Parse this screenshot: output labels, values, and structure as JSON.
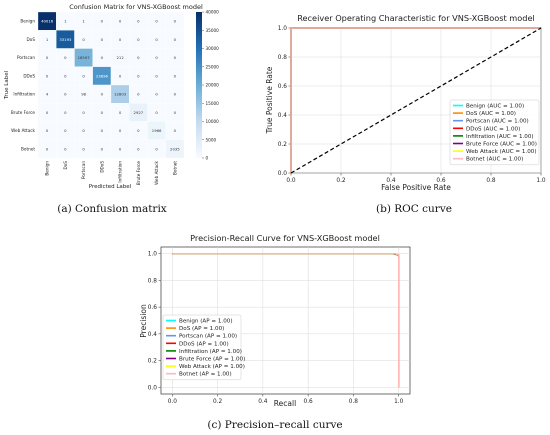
{
  "chart_data": [
    {
      "type": "heatmap",
      "title": "Confusion Matrix for VNS-XGBoost model",
      "xlabel": "Predicted Label",
      "ylabel": "True Label",
      "categories": [
        "Benign",
        "DoS",
        "Portscan",
        "DDoS",
        "Infiltration",
        "Brute Force",
        "Web Attack",
        "Botnet"
      ],
      "matrix": [
        [
          "40016",
          "1",
          "1",
          "0",
          "0",
          "0",
          "0",
          "0"
        ],
        [
          "1",
          "33193",
          "0",
          "0",
          "0",
          "0",
          "0",
          "0"
        ],
        [
          "0",
          "0",
          "18597",
          "0",
          "212",
          "0",
          "0",
          "0"
        ],
        [
          "0",
          "0",
          "0",
          "23896",
          "0",
          "0",
          "0",
          "0"
        ],
        [
          "4",
          "0",
          "98",
          "0",
          "12803",
          "0",
          "0",
          "0"
        ],
        [
          "0",
          "0",
          "0",
          "0",
          "0",
          "2927",
          "0",
          "0"
        ],
        [
          "0",
          "0",
          "0",
          "0",
          "0",
          "0",
          "1966",
          "0"
        ],
        [
          "0",
          "0",
          "0",
          "0",
          "0",
          "0",
          "0",
          "2035"
        ]
      ],
      "colorbar_ticks": [
        "0",
        "5000",
        "10000",
        "15000",
        "20000",
        "25000",
        "30000",
        "35000",
        "40000"
      ],
      "colorbar_range": [
        0,
        40000
      ],
      "caption": "(a) Confusion matrix"
    },
    {
      "type": "line",
      "title": "Receiver Operating Characteristic for VNS-XGBoost model",
      "xlabel": "False Positive Rate",
      "ylabel": "True Positive Rate",
      "xlim": [
        0,
        1
      ],
      "ylim": [
        0,
        1
      ],
      "xticks": [
        "0.0",
        "0.2",
        "0.4",
        "0.6",
        "0.8",
        "1.0"
      ],
      "yticks": [
        "0.0",
        "0.2",
        "0.4",
        "0.6",
        "0.8",
        "1.0"
      ],
      "grid": true,
      "legend_position": "lower-right",
      "series": [
        {
          "name": "Benign (AUC = 1.00)",
          "color": "#00ffff",
          "x": [
            0,
            0,
            1
          ],
          "y": [
            0,
            1,
            1
          ]
        },
        {
          "name": "DoS (AUC = 1.00)",
          "color": "#ff8c00",
          "x": [
            0,
            0,
            1
          ],
          "y": [
            0,
            1,
            1
          ]
        },
        {
          "name": "Portscan (AUC = 1.00)",
          "color": "#6495ed",
          "x": [
            0,
            0,
            1
          ],
          "y": [
            0,
            1,
            1
          ]
        },
        {
          "name": "DDoS (AUC = 1.00)",
          "color": "#ff0000",
          "x": [
            0,
            0,
            1
          ],
          "y": [
            0,
            1,
            1
          ]
        },
        {
          "name": "Infiltration (AUC = 1.00)",
          "color": "#008000",
          "x": [
            0,
            0,
            1
          ],
          "y": [
            0,
            1,
            1
          ]
        },
        {
          "name": "Brute Force (AUC = 1.00)",
          "color": "#800080",
          "x": [
            0,
            0,
            1
          ],
          "y": [
            0,
            1,
            1
          ]
        },
        {
          "name": "Web Attack (AUC = 1.00)",
          "color": "#ffff00",
          "x": [
            0,
            0,
            1
          ],
          "y": [
            0,
            1,
            1
          ]
        },
        {
          "name": "Botnet (AUC = 1.00)",
          "color": "#ffb6c1",
          "x": [
            0,
            0,
            1
          ],
          "y": [
            0,
            1,
            1
          ]
        }
      ],
      "diagonal": {
        "x": [
          0,
          1
        ],
        "y": [
          0,
          1
        ],
        "style": "dashed",
        "color": "#000000"
      },
      "caption": "(b) ROC curve"
    },
    {
      "type": "line",
      "title": "Precision-Recall Curve for VNS-XGBoost model",
      "xlabel": "Recall",
      "ylabel": "Precision",
      "xlim": [
        -0.05,
        1.05
      ],
      "ylim": [
        -0.05,
        1.05
      ],
      "xticks": [
        "0.0",
        "0.2",
        "0.4",
        "0.6",
        "0.8",
        "1.0"
      ],
      "yticks": [
        "0.0",
        "0.2",
        "0.4",
        "0.6",
        "0.8",
        "1.0"
      ],
      "grid": true,
      "legend_position": "lower-left",
      "series": [
        {
          "name": "Benign (AP = 1.00)",
          "color": "#00ffff",
          "x": [
            0,
            0.985,
            0.99,
            1.0,
            1.0
          ],
          "y": [
            1,
            1,
            0.995,
            0.99,
            0.0
          ]
        },
        {
          "name": "DoS (AP = 1.00)",
          "color": "#ff8c00",
          "x": [
            0,
            0.985,
            0.99,
            1.0,
            1.0
          ],
          "y": [
            1,
            1,
            0.995,
            0.99,
            0.0
          ]
        },
        {
          "name": "Portscan (AP = 1.00)",
          "color": "#6495ed",
          "x": [
            0,
            0.985,
            0.99,
            1.0,
            1.0
          ],
          "y": [
            1,
            1,
            0.995,
            0.99,
            0.0
          ]
        },
        {
          "name": "DDoS (AP = 1.00)",
          "color": "#ff0000",
          "x": [
            0,
            0.985,
            0.99,
            1.0,
            1.0
          ],
          "y": [
            1,
            1,
            0.995,
            0.99,
            0.0
          ]
        },
        {
          "name": "Infiltration (AP = 1.00)",
          "color": "#008000",
          "x": [
            0,
            0.97,
            0.985,
            0.995,
            1.0,
            1.0
          ],
          "y": [
            1,
            1,
            0.995,
            0.99,
            0.98,
            0.0
          ]
        },
        {
          "name": "Brute Force (AP = 1.00)",
          "color": "#800080",
          "x": [
            0,
            0.985,
            0.99,
            1.0,
            1.0
          ],
          "y": [
            1,
            1,
            0.995,
            0.99,
            0.0
          ]
        },
        {
          "name": "Web Attack (AP = 1.00)",
          "color": "#ffff00",
          "x": [
            0,
            0.985,
            0.99,
            1.0,
            1.0
          ],
          "y": [
            1,
            1,
            0.995,
            0.99,
            0.0
          ]
        },
        {
          "name": "Botnet (AP = 1.00)",
          "color": "#ffb6c1",
          "x": [
            0,
            0.985,
            0.99,
            1.0,
            1.0
          ],
          "y": [
            1,
            1,
            0.995,
            0.99,
            0.0
          ]
        }
      ],
      "caption": "(c) Precision–recall curve"
    }
  ]
}
